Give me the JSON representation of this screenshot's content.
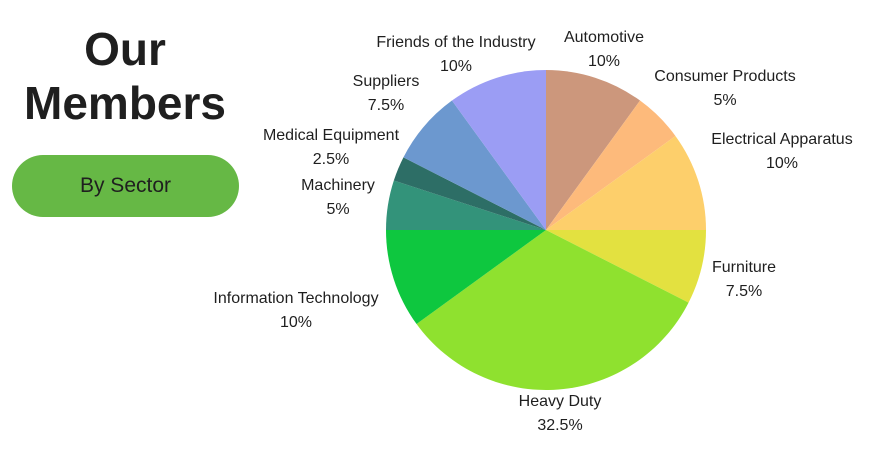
{
  "header": {
    "title_line1": "Our",
    "title_line2": "Members"
  },
  "filter_button": {
    "label": "By Sector",
    "color": "#66b845"
  },
  "chart_data": {
    "type": "pie",
    "start": "12 o'clock, clockwise",
    "slices": [
      {
        "label": "Automotive",
        "value": 10,
        "pct_label": "10%",
        "color": "#cc977c"
      },
      {
        "label": "Consumer Products",
        "value": 5,
        "pct_label": "5%",
        "color": "#fdba7b"
      },
      {
        "label": "Electrical Apparatus",
        "value": 10,
        "pct_label": "10%",
        "color": "#fdcf6b"
      },
      {
        "label": "Furniture",
        "value": 7.5,
        "pct_label": "7.5%",
        "color": "#e3e140"
      },
      {
        "label": "Heavy Duty",
        "value": 32.5,
        "pct_label": "32.5%",
        "color": "#8fe12f"
      },
      {
        "label": "Information Technology",
        "value": 10,
        "pct_label": "10%",
        "color": "#0ec73f"
      },
      {
        "label": "Machinery",
        "value": 5,
        "pct_label": "5%",
        "color": "#33937a"
      },
      {
        "label": "Medical Equipment",
        "value": 2.5,
        "pct_label": "2.5%",
        "color": "#2d6e66"
      },
      {
        "label": "Suppliers",
        "value": 7.5,
        "pct_label": "7.5%",
        "color": "#6c98cf"
      },
      {
        "label": "Friends of the Industry",
        "value": 10,
        "pct_label": "10%",
        "color": "#9b9df4"
      }
    ]
  }
}
